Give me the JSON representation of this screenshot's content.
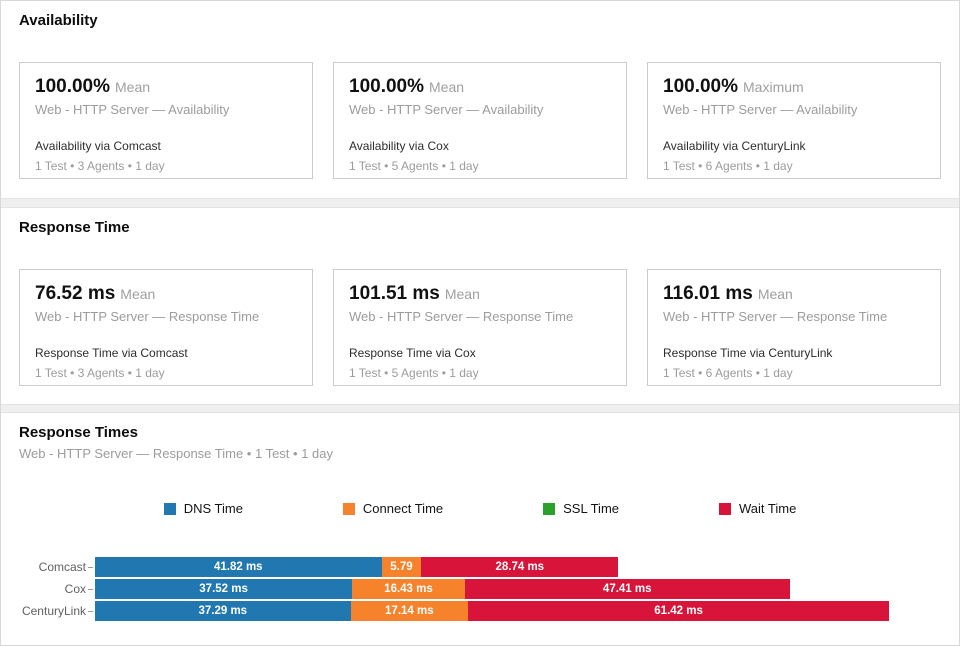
{
  "availability": {
    "title": "Availability",
    "cards": [
      {
        "value": "100.00%",
        "stat": "Mean",
        "metric": "Web - HTTP Server — Availability",
        "title": "Availability via Comcast",
        "meta": "1 Test • 3 Agents • 1 day"
      },
      {
        "value": "100.00%",
        "stat": "Mean",
        "metric": "Web - HTTP Server — Availability",
        "title": "Availability via Cox",
        "meta": "1 Test • 5 Agents • 1 day"
      },
      {
        "value": "100.00%",
        "stat": "Maximum",
        "metric": "Web - HTTP Server — Availability",
        "title": "Availability via CenturyLink",
        "meta": "1 Test • 6 Agents • 1 day"
      }
    ]
  },
  "response_time": {
    "title": "Response Time",
    "cards": [
      {
        "value": "76.52 ms",
        "stat": "Mean",
        "metric": "Web - HTTP Server — Response Time",
        "title": "Response Time via Comcast",
        "meta": "1 Test • 3 Agents • 1 day"
      },
      {
        "value": "101.51 ms",
        "stat": "Mean",
        "metric": "Web - HTTP Server — Response Time",
        "title": "Response Time via Cox",
        "meta": "1 Test • 5 Agents • 1 day"
      },
      {
        "value": "116.01 ms",
        "stat": "Mean",
        "metric": "Web - HTTP Server — Response Time",
        "title": "Response Time via CenturyLink",
        "meta": "1 Test • 6 Agents • 1 day"
      }
    ]
  },
  "response_times": {
    "title": "Response Times",
    "subtitle": "Web - HTTP Server — Response Time • 1 Test • 1 day"
  },
  "chart_data": {
    "type": "bar",
    "orientation": "horizontal",
    "stacked": true,
    "title": "Response Times",
    "unit": "ms",
    "categories": [
      "Comcast",
      "Cox",
      "CenturyLink"
    ],
    "series": [
      {
        "name": "DNS Time",
        "color": "#2177b0",
        "values": [
          41.82,
          37.52,
          37.29
        ],
        "labels": [
          "41.82 ms",
          "37.52 ms",
          "37.29 ms"
        ]
      },
      {
        "name": "Connect Time",
        "color": "#f6832c",
        "values": [
          5.79,
          16.43,
          17.14
        ],
        "labels": [
          "5.79",
          "16.43 ms",
          "17.14 ms"
        ]
      },
      {
        "name": "SSL Time",
        "color": "#2ba02b",
        "values": [
          0,
          0,
          0
        ],
        "labels": [
          "",
          "",
          ""
        ]
      },
      {
        "name": "Wait Time",
        "color": "#d8143a",
        "values": [
          28.74,
          47.41,
          61.42
        ],
        "labels": [
          "28.74 ms",
          "47.41 ms",
          "61.42 ms"
        ]
      }
    ],
    "legend": [
      "DNS Time",
      "Connect Time",
      "SSL Time",
      "Wait Time"
    ],
    "legend_position": "top",
    "xlim": [
      0,
      115.85
    ],
    "axis_ticks_visible": false,
    "grid": false
  }
}
